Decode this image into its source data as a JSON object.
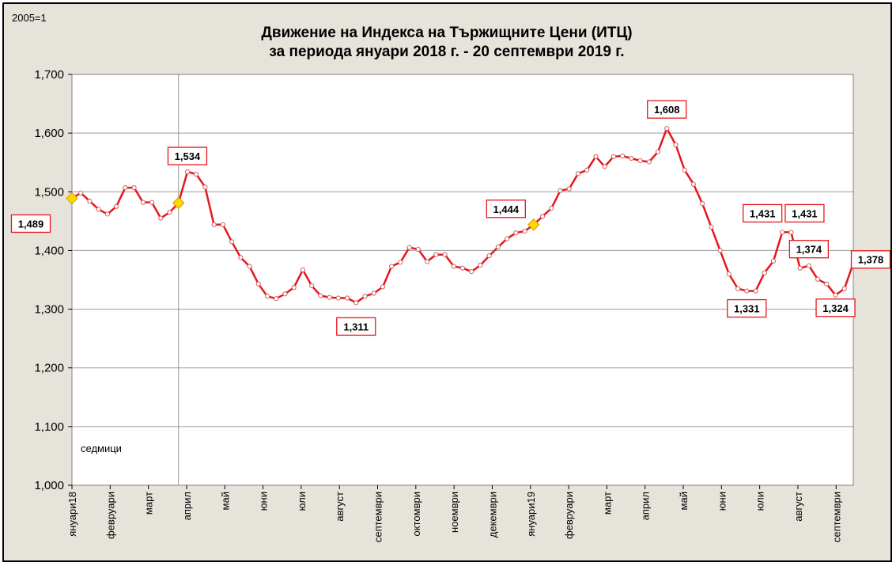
{
  "chart_data": {
    "type": "line",
    "base_note": "2005=1",
    "title": "Движение на Индекса на Тържищните Цени (ИТЦ)",
    "subtitle": "за периода януари 2018 г. -  20 септември 2019 г.",
    "xlabel": "",
    "ylabel": "",
    "unit_note": "седмици",
    "ylim": [
      1.0,
      1.7
    ],
    "y_ticks": [
      "1,000",
      "1,100",
      "1,200",
      "1,300",
      "1,400",
      "1,500",
      "1,600",
      "1,700"
    ],
    "grid": true,
    "legend": "none",
    "line_color": "#e8161b",
    "highlight_color": "#ffd700",
    "month_labels": [
      "януари18",
      "февруари",
      "март",
      "април",
      "май",
      "юни",
      "юли",
      "август",
      "септември",
      "октомври",
      "ноември",
      "декември",
      "януари19",
      "февруари",
      "март",
      "април",
      "май",
      "юни",
      "юли",
      "август",
      "септември"
    ],
    "series": [
      {
        "values": [
          1.489,
          1.498,
          1.484,
          1.47,
          1.462,
          1.475,
          1.507,
          1.507,
          1.482,
          1.482,
          1.455,
          1.465,
          1.481,
          1.534,
          1.53,
          1.508,
          1.444,
          1.444,
          1.415,
          1.388,
          1.373,
          1.343,
          1.322,
          1.318,
          1.326,
          1.337,
          1.367,
          1.34,
          1.323,
          1.32,
          1.319,
          1.319,
          1.311,
          1.322,
          1.327,
          1.338,
          1.373,
          1.38,
          1.405,
          1.402,
          1.381,
          1.393,
          1.393,
          1.373,
          1.37,
          1.364,
          1.375,
          1.391,
          1.406,
          1.42,
          1.43,
          1.433,
          1.444,
          1.458,
          1.472,
          1.502,
          1.505,
          1.531,
          1.537,
          1.56,
          1.543,
          1.56,
          1.561,
          1.557,
          1.553,
          1.551,
          1.568,
          1.608,
          1.58,
          1.537,
          1.513,
          1.48,
          1.44,
          1.4,
          1.36,
          1.335,
          1.331,
          1.331,
          1.362,
          1.382,
          1.431,
          1.431,
          1.37,
          1.374,
          1.351,
          1.343,
          1.324,
          1.335,
          1.378
        ]
      }
    ],
    "annotations": [
      {
        "index": 0,
        "text": "1,489"
      },
      {
        "index": 13,
        "text": "1,534"
      },
      {
        "index": 32,
        "text": "1,311"
      },
      {
        "index": 52,
        "text": "1,444"
      },
      {
        "index": 67,
        "text": "1,608"
      },
      {
        "index": 76,
        "text": "1,331"
      },
      {
        "index": 80,
        "text": "1,431"
      },
      {
        "index": 81,
        "text": "1,431"
      },
      {
        "index": 83,
        "text": "1,374"
      },
      {
        "index": 86,
        "text": "1,324"
      },
      {
        "index": 88,
        "text": "1,378"
      }
    ],
    "highlight_points": [
      0,
      12,
      52
    ]
  }
}
